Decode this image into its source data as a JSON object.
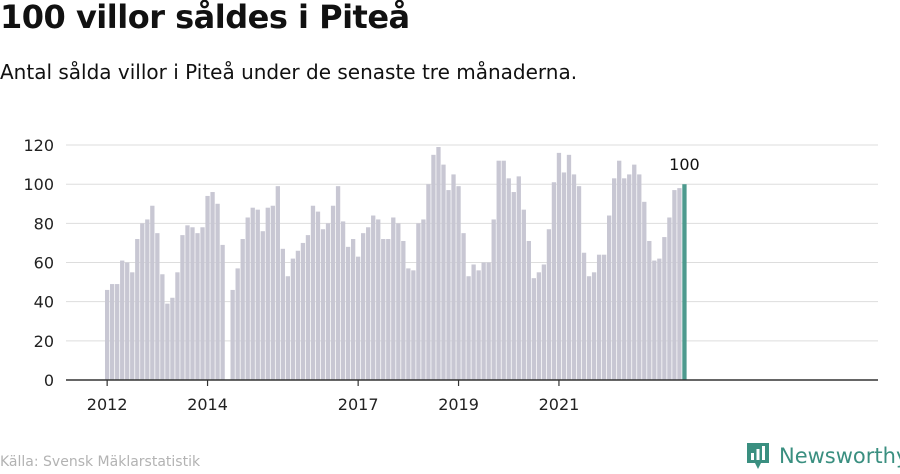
{
  "header": {
    "title": "100 villor såldes i Piteå",
    "subtitle": "Antal sålda villor i Piteå under de senaste tre månaderna."
  },
  "footer": {
    "source": "Källa: Svensk Mäklarstatistik",
    "brand": "Newsworthy"
  },
  "colors": {
    "bar": "#c8c7d3",
    "highlight": "#4d9a8e",
    "grid": "#dddddd",
    "axis": "#333333",
    "brand": "#3a8f80"
  },
  "chart_data": {
    "type": "bar",
    "xlabel": "",
    "ylabel": "",
    "ylim": [
      0,
      120
    ],
    "yticks": [
      0,
      20,
      40,
      60,
      80,
      100,
      120
    ],
    "grid": true,
    "x_tick_labels": [
      {
        "label": "2012",
        "index": 0
      },
      {
        "label": "2014",
        "index": 20
      },
      {
        "label": "2017",
        "index": 50
      },
      {
        "label": "2019",
        "index": 70
      },
      {
        "label": "2021",
        "index": 90
      }
    ],
    "highlight_label": "100",
    "values": [
      46,
      49,
      49,
      61,
      60,
      55,
      72,
      80,
      82,
      89,
      75,
      54,
      39,
      42,
      55,
      74,
      79,
      78,
      75,
      78,
      94,
      96,
      90,
      69,
      0,
      46,
      57,
      72,
      83,
      88,
      87,
      76,
      88,
      89,
      99,
      67,
      53,
      62,
      66,
      70,
      74,
      89,
      86,
      77,
      80,
      89,
      99,
      81,
      68,
      72,
      63,
      75,
      78,
      84,
      82,
      72,
      72,
      83,
      80,
      71,
      57,
      56,
      80,
      82,
      100,
      115,
      119,
      110,
      97,
      105,
      99,
      75,
      53,
      59,
      56,
      60,
      60,
      82,
      112,
      112,
      103,
      96,
      104,
      87,
      71,
      52,
      55,
      59,
      77,
      101,
      116,
      106,
      115,
      105,
      99,
      65,
      53,
      55,
      64,
      64,
      84,
      103,
      112,
      103,
      105,
      110,
      105,
      91,
      71,
      61,
      62,
      73,
      83,
      97,
      98,
      100
    ]
  }
}
